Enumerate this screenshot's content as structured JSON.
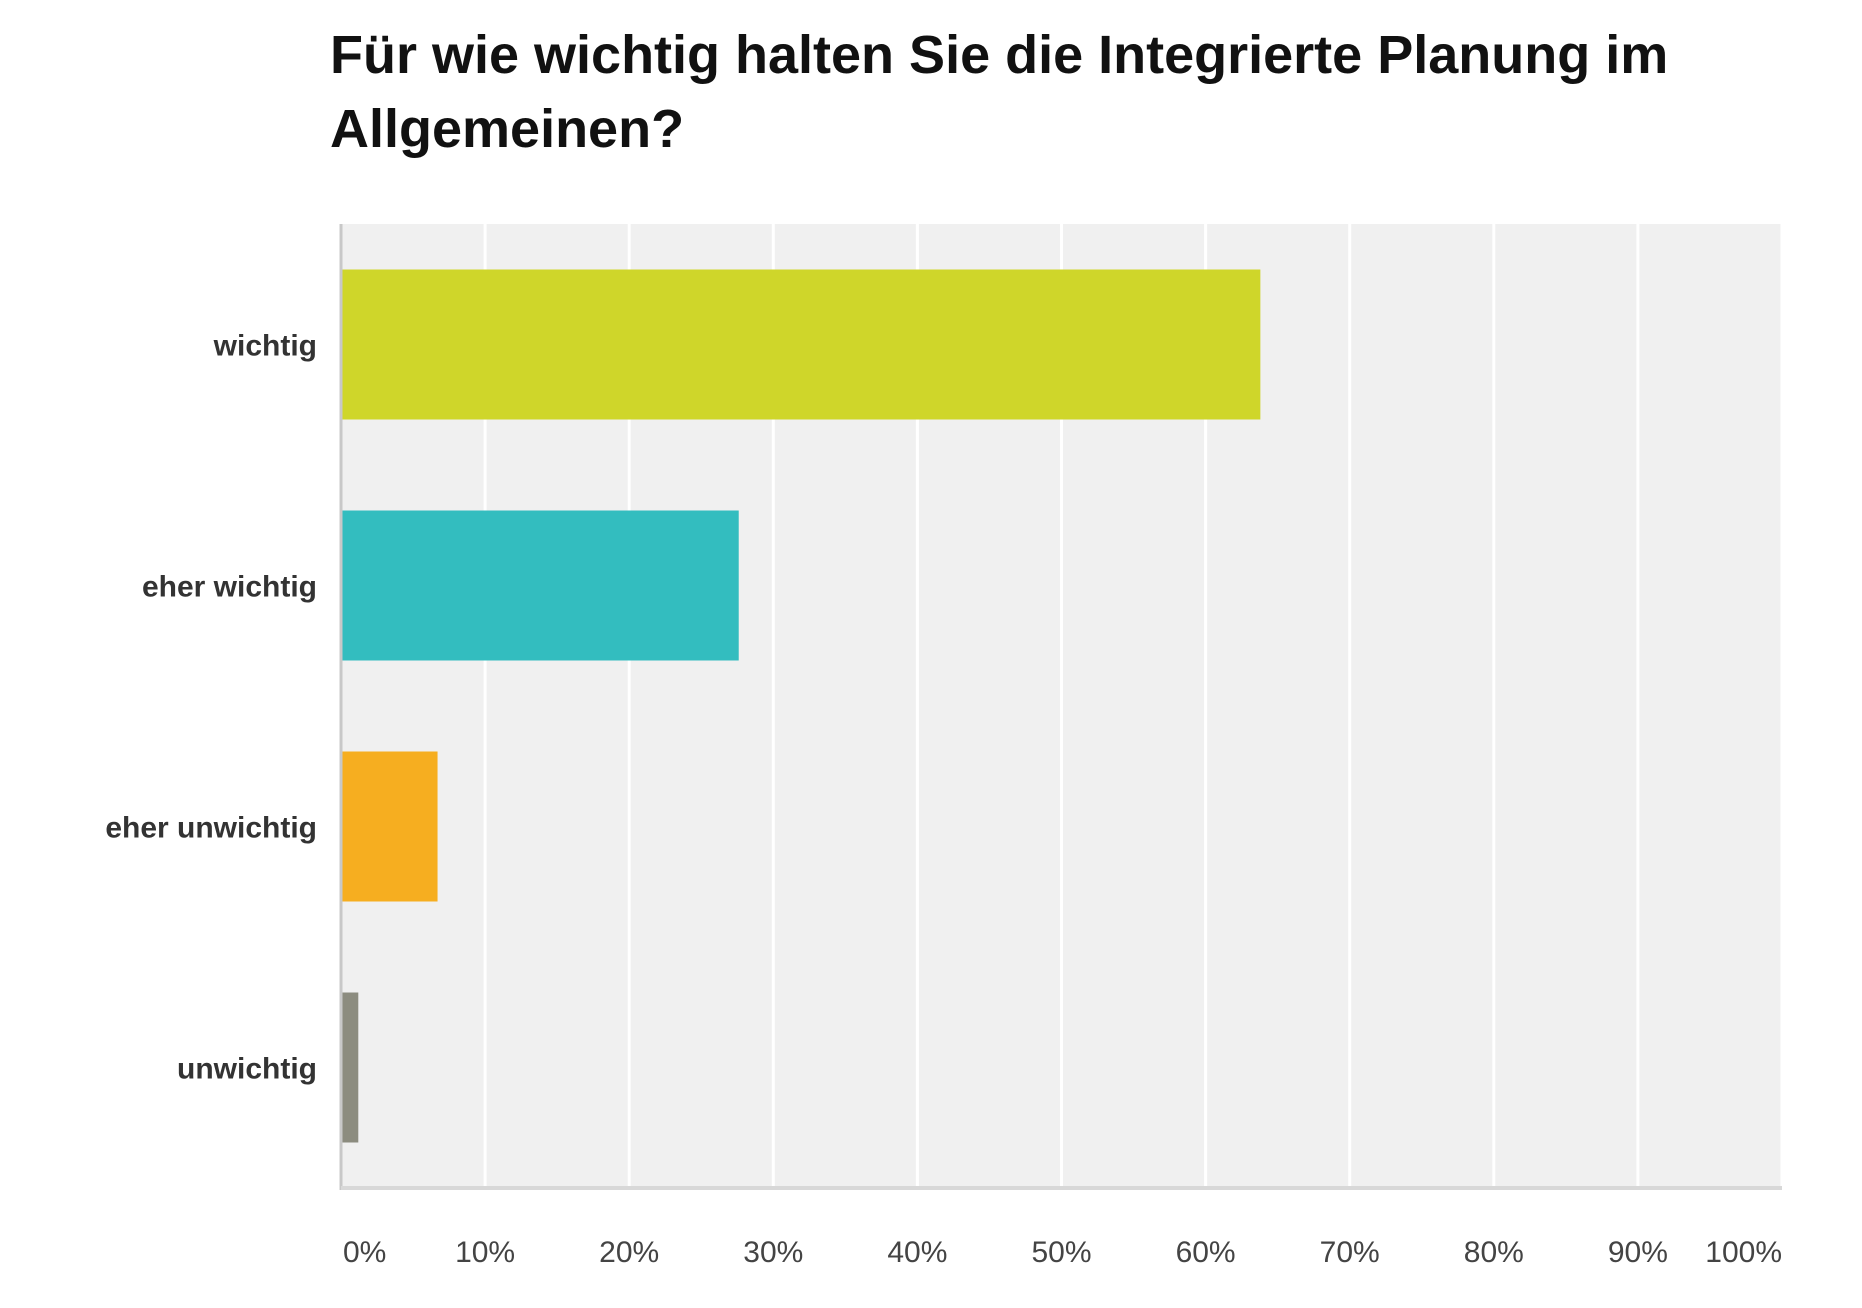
{
  "chart_data": {
    "type": "bar",
    "orientation": "horizontal",
    "title": "Für wie wichtig halten Sie die Integrierte Planung im Allgemeinen?",
    "categories": [
      "wichtig",
      "eher wichtig",
      "eher unwichtig",
      "unwichtig"
    ],
    "values": [
      63.8,
      27.6,
      6.7,
      1.2
    ],
    "colors": [
      "#cfd62a",
      "#33bdbf",
      "#f6ae20",
      "#8c8c7f"
    ],
    "xlim": [
      0,
      100
    ],
    "x_ticks": [
      "0%",
      "10%",
      "20%",
      "30%",
      "40%",
      "50%",
      "60%",
      "70%",
      "80%",
      "90%",
      "100%"
    ],
    "grid": true,
    "plot_background": "#f0f0f0",
    "grid_color": "#ffffff"
  }
}
